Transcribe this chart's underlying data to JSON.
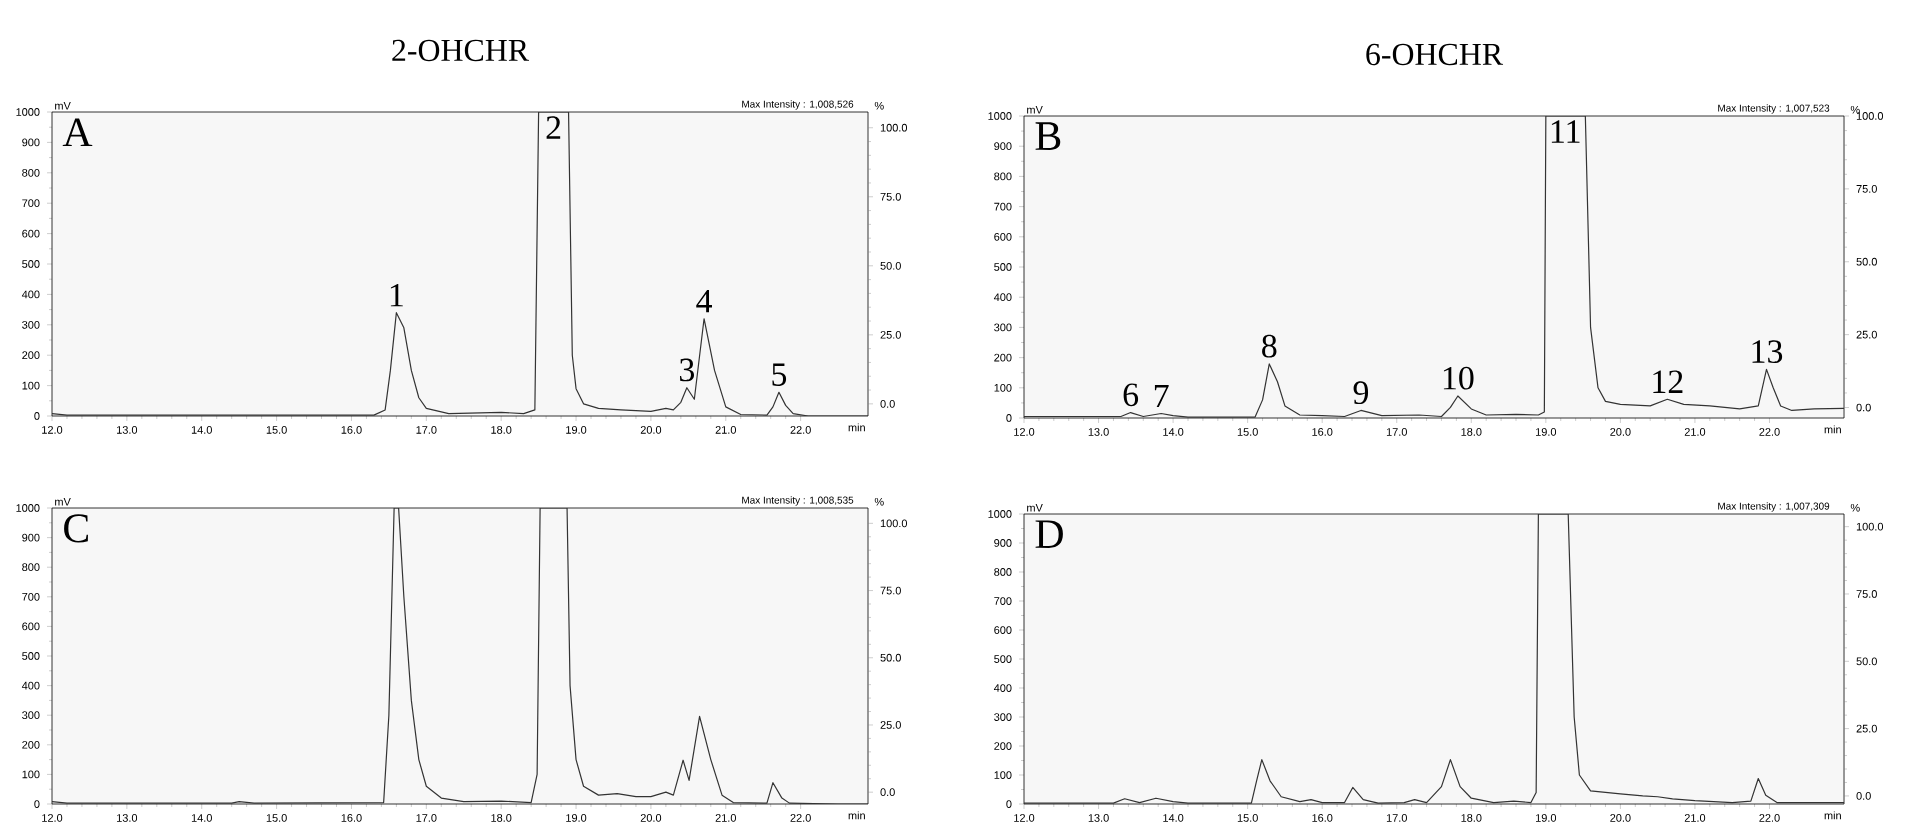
{
  "chart_data": [
    {
      "type": "line",
      "title": "2-OHCHR",
      "xlabel": "min",
      "ylabel": "mV",
      "y2label": "%",
      "color": "#333333",
      "xlim": [
        12,
        22.9
      ],
      "ylim": [
        0,
        1000
      ],
      "y2lim": [
        -4.4,
        105.7
      ],
      "xticks": [
        {
          "value": 12,
          "label": "12.0"
        },
        {
          "value": 13,
          "label": "13.0"
        },
        {
          "value": 14,
          "label": "14.0"
        },
        {
          "value": 15,
          "label": "15.0"
        },
        {
          "value": 16,
          "label": "16.0"
        },
        {
          "value": 17,
          "label": "17.0"
        },
        {
          "value": 18,
          "label": "18.0"
        },
        {
          "value": 19,
          "label": "19.0"
        },
        {
          "value": 20,
          "label": "20.0"
        },
        {
          "value": 21,
          "label": "21.0"
        },
        {
          "value": 22,
          "label": "22.0"
        }
      ],
      "yticks": [
        0,
        100,
        200,
        300,
        400,
        500,
        600,
        700,
        800,
        900,
        1000
      ],
      "y2ticks": [
        {
          "value": 0,
          "label": "0.0"
        },
        {
          "value": 25,
          "label": "25.0"
        },
        {
          "value": 50,
          "label": "50.0"
        },
        {
          "value": 75,
          "label": "75.0"
        },
        {
          "value": 100,
          "label": "100.0"
        }
      ],
      "x": [
        12.0,
        12.2,
        16.3,
        16.45,
        16.52,
        16.6,
        16.7,
        16.8,
        16.9,
        17.0,
        17.3,
        18.0,
        18.3,
        18.45,
        18.5,
        18.9,
        18.95,
        19.0,
        19.1,
        19.3,
        19.6,
        20.0,
        20.2,
        20.3,
        20.4,
        20.48,
        20.58,
        20.71,
        20.85,
        21.0,
        21.2,
        21.55,
        21.63,
        21.71,
        21.8,
        21.9,
        22.1,
        22.9
      ],
      "values": [
        8,
        3,
        3,
        20,
        150,
        340,
        290,
        150,
        60,
        25,
        8,
        12,
        8,
        20,
        1000,
        1000,
        200,
        90,
        40,
        25,
        20,
        15,
        25,
        20,
        45,
        93,
        55,
        320,
        150,
        30,
        5,
        3,
        30,
        78,
        35,
        8,
        0,
        0
      ],
      "annotations": [
        "A",
        "Max Intensity : 1,008,526",
        {
          "text": "1",
          "x": 16.6,
          "y": 340
        },
        {
          "text": "2",
          "x": 18.7,
          "y": 1000
        },
        {
          "text": "3",
          "x": 20.48,
          "y": 93
        },
        {
          "text": "4",
          "x": 20.71,
          "y": 320
        },
        {
          "text": "5",
          "x": 21.71,
          "y": 78
        }
      ]
    },
    {
      "type": "line",
      "title": "6-OHCHR",
      "xlabel": "min",
      "ylabel": "mV",
      "y2label": "%",
      "color": "#333333",
      "xlim": [
        12,
        23.0
      ],
      "ylim": [
        0,
        1000
      ],
      "y2lim": [
        -3.6,
        100
      ],
      "xticks": [
        {
          "value": 12,
          "label": "12.0"
        },
        {
          "value": 13,
          "label": "13.0"
        },
        {
          "value": 14,
          "label": "14.0"
        },
        {
          "value": 15,
          "label": "15.0"
        },
        {
          "value": 16,
          "label": "16.0"
        },
        {
          "value": 17,
          "label": "17.0"
        },
        {
          "value": 18,
          "label": "18.0"
        },
        {
          "value": 19,
          "label": "19.0"
        },
        {
          "value": 20,
          "label": "20.0"
        },
        {
          "value": 21,
          "label": "21.0"
        },
        {
          "value": 22,
          "label": "22.0"
        }
      ],
      "yticks": [
        0,
        100,
        200,
        300,
        400,
        500,
        600,
        700,
        800,
        900,
        1000
      ],
      "y2ticks": [
        {
          "value": 0,
          "label": "0.0"
        },
        {
          "value": 25,
          "label": "25.0"
        },
        {
          "value": 50,
          "label": "50.0"
        },
        {
          "value": 75,
          "label": "75.0"
        },
        {
          "value": 100,
          "label": "100.0"
        }
      ],
      "x": [
        12.0,
        13.3,
        13.43,
        13.6,
        13.84,
        14.0,
        14.2,
        15.1,
        15.2,
        15.29,
        15.4,
        15.5,
        15.7,
        16.0,
        16.3,
        16.52,
        16.8,
        17.3,
        17.6,
        17.72,
        17.82,
        18.0,
        18.2,
        18.6,
        18.9,
        18.98,
        19.0,
        19.53,
        19.6,
        19.7,
        19.8,
        20.0,
        20.4,
        20.63,
        20.85,
        21.2,
        21.6,
        21.85,
        21.96,
        22.05,
        22.15,
        22.3,
        22.6,
        23.0
      ],
      "values": [
        5,
        5,
        18,
        5,
        15,
        8,
        3,
        3,
        60,
        179,
        120,
        40,
        10,
        8,
        5,
        25,
        8,
        10,
        5,
        35,
        73,
        30,
        10,
        12,
        10,
        20,
        1000,
        1000,
        300,
        100,
        55,
        45,
        40,
        62,
        45,
        40,
        30,
        40,
        161,
        100,
        40,
        25,
        30,
        32
      ],
      "annotations": [
        "B",
        "Max Intensity : 1,007,523",
        {
          "text": "6",
          "x": 13.43,
          "y": 18
        },
        {
          "text": "7",
          "x": 13.84,
          "y": 15
        },
        {
          "text": "8",
          "x": 15.29,
          "y": 179
        },
        {
          "text": "9",
          "x": 16.52,
          "y": 25
        },
        {
          "text": "10",
          "x": 17.82,
          "y": 73
        },
        {
          "text": "11",
          "x": 19.26,
          "y": 1000
        },
        {
          "text": "12",
          "x": 20.63,
          "y": 62
        },
        {
          "text": "13",
          "x": 21.96,
          "y": 161
        }
      ]
    },
    {
      "type": "line",
      "xlabel": "min",
      "ylabel": "mV",
      "y2label": "%",
      "color": "#333333",
      "xlim": [
        12,
        22.9
      ],
      "ylim": [
        0,
        1000
      ],
      "y2lim": [
        -4.4,
        105.7
      ],
      "xticks": [
        {
          "value": 12,
          "label": "12.0"
        },
        {
          "value": 13,
          "label": "13.0"
        },
        {
          "value": 14,
          "label": "14.0"
        },
        {
          "value": 15,
          "label": "15.0"
        },
        {
          "value": 16,
          "label": "16.0"
        },
        {
          "value": 17,
          "label": "17.0"
        },
        {
          "value": 18,
          "label": "18.0"
        },
        {
          "value": 19,
          "label": "19.0"
        },
        {
          "value": 20,
          "label": "20.0"
        },
        {
          "value": 21,
          "label": "21.0"
        },
        {
          "value": 22,
          "label": "22.0"
        }
      ],
      "yticks": [
        0,
        100,
        200,
        300,
        400,
        500,
        600,
        700,
        800,
        900,
        1000
      ],
      "y2ticks": [
        {
          "value": 0,
          "label": "0.0"
        },
        {
          "value": 25,
          "label": "25.0"
        },
        {
          "value": 50,
          "label": "50.0"
        },
        {
          "value": 75,
          "label": "75.0"
        },
        {
          "value": 100,
          "label": "100.0"
        }
      ],
      "x": [
        12.0,
        12.2,
        14.4,
        14.5,
        14.7,
        16.43,
        16.5,
        16.57,
        16.63,
        16.7,
        16.8,
        16.9,
        17.0,
        17.2,
        17.5,
        18.0,
        18.4,
        18.48,
        18.52,
        18.88,
        18.92,
        19.0,
        19.1,
        19.3,
        19.55,
        19.8,
        20.0,
        20.2,
        20.3,
        20.43,
        20.51,
        20.65,
        20.8,
        20.95,
        21.1,
        21.55,
        21.63,
        21.75,
        21.85,
        22.5,
        22.9
      ],
      "values": [
        8,
        3,
        3,
        8,
        3,
        5,
        300,
        1000,
        1000,
        700,
        350,
        150,
        60,
        20,
        8,
        10,
        5,
        100,
        1000,
        1000,
        400,
        150,
        60,
        30,
        35,
        25,
        25,
        40,
        30,
        148,
        80,
        296,
        150,
        30,
        5,
        3,
        72,
        20,
        3,
        0,
        0
      ],
      "annotations": [
        "C",
        "Max Intensity : 1,008,535"
      ]
    },
    {
      "type": "line",
      "xlabel": "min",
      "ylabel": "mV",
      "y2label": "%",
      "color": "#333333",
      "xlim": [
        12,
        23.0
      ],
      "ylim": [
        0,
        1000
      ],
      "y2lim": [
        -3.0,
        104.7
      ],
      "xticks": [
        {
          "value": 12,
          "label": "12.0"
        },
        {
          "value": 13,
          "label": "13.0"
        },
        {
          "value": 14,
          "label": "14.0"
        },
        {
          "value": 15,
          "label": "15.0"
        },
        {
          "value": 16,
          "label": "16.0"
        },
        {
          "value": 17,
          "label": "17.0"
        },
        {
          "value": 18,
          "label": "18.0"
        },
        {
          "value": 19,
          "label": "19.0"
        },
        {
          "value": 20,
          "label": "20.0"
        },
        {
          "value": 21,
          "label": "21.0"
        },
        {
          "value": 22,
          "label": "22.0"
        }
      ],
      "yticks": [
        0,
        100,
        200,
        300,
        400,
        500,
        600,
        700,
        800,
        900,
        1000
      ],
      "y2ticks": [
        {
          "value": 0,
          "label": "0.0"
        },
        {
          "value": 25,
          "label": "25.0"
        },
        {
          "value": 50,
          "label": "50.0"
        },
        {
          "value": 75,
          "label": "75.0"
        },
        {
          "value": 100,
          "label": "100.0"
        }
      ],
      "x": [
        12.0,
        13.2,
        13.35,
        13.55,
        13.77,
        14.0,
        14.2,
        15.05,
        15.12,
        15.19,
        15.3,
        15.45,
        15.7,
        15.85,
        16.0,
        16.3,
        16.41,
        16.55,
        16.75,
        17.1,
        17.24,
        17.4,
        17.6,
        17.72,
        17.85,
        18.0,
        18.3,
        18.57,
        18.8,
        18.87,
        18.9,
        19.3,
        19.38,
        19.45,
        19.6,
        20.0,
        20.3,
        20.5,
        20.7,
        21.0,
        21.5,
        21.75,
        21.85,
        21.95,
        22.1,
        23.0
      ],
      "values": [
        3,
        3,
        18,
        5,
        20,
        8,
        3,
        3,
        80,
        153,
        80,
        25,
        8,
        15,
        5,
        5,
        57,
        15,
        3,
        5,
        15,
        5,
        60,
        153,
        60,
        20,
        5,
        10,
        5,
        40,
        1000,
        1000,
        300,
        100,
        45,
        35,
        28,
        25,
        18,
        12,
        5,
        10,
        88,
        30,
        5,
        5
      ],
      "annotations": [
        "D",
        "Max Intensity : 1,007,309"
      ]
    }
  ]
}
